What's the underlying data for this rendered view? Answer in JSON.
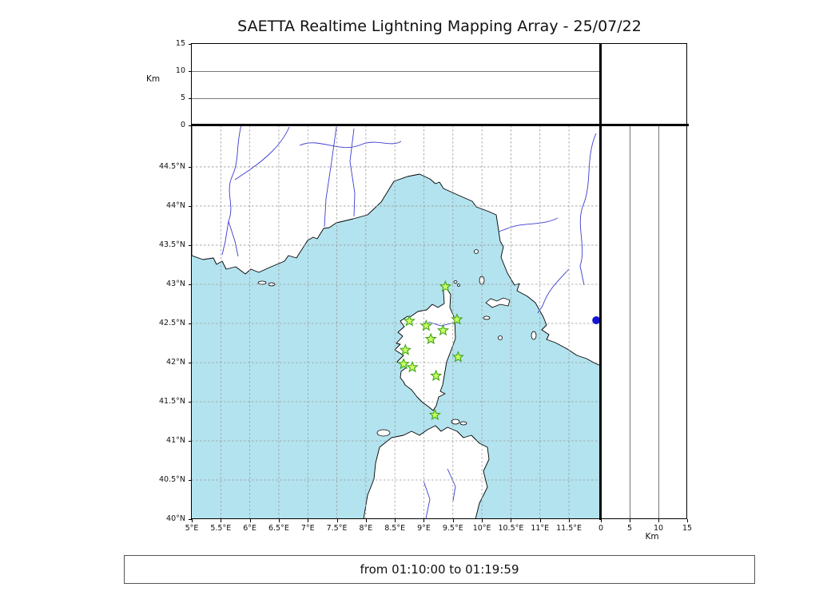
{
  "title": "SAETTA Realtime Lightning Mapping Array - 25/07/22",
  "footer": {
    "text": "from 01:10:00 to 01:19:59"
  },
  "colors": {
    "sea": "#b3e3ee",
    "river": "#3b3bd1",
    "station_fill": "#ccff66",
    "station_edge": "#3ea512",
    "point": "#1515cf"
  },
  "altitude_axis": {
    "unit": "Km",
    "tick_labels": [
      "0",
      "5",
      "10",
      "15"
    ],
    "tick_values": [
      0,
      5,
      10,
      15
    ],
    "max": 15
  },
  "map_axes": {
    "lat_tick_labels": [
      "44.5°N",
      "44°N",
      "43.5°N",
      "43°N",
      "42.5°N",
      "42°N",
      "41.5°N",
      "41°N",
      "40.5°N",
      "40°N"
    ],
    "lat_tick_values": [
      44.5,
      44,
      43.5,
      43,
      42.5,
      42,
      41.5,
      41,
      40.5,
      40
    ],
    "lon_tick_labels": [
      "5°E",
      "5.5°E",
      "6°E",
      "6.5°E",
      "7°E",
      "7.5°E",
      "8°E",
      "8.5°E",
      "9°E",
      "9.5°E",
      "10°E",
      "10.5°E",
      "11°E",
      "11.5°E"
    ],
    "lon_tick_values": [
      5,
      5.5,
      6,
      6.5,
      7,
      7.5,
      8,
      8.5,
      9,
      9.5,
      10,
      10.5,
      11,
      11.5
    ]
  },
  "chart_data": {
    "type": "scatter",
    "title": "SAETTA Realtime Lightning Mapping Array - 25/07/22",
    "time_window": {
      "from": "01:10:00",
      "to": "01:19:59"
    },
    "map_panel": {
      "region": "Corsica and NW Mediterranean",
      "lon_range": [
        5,
        12.05
      ],
      "lat_range": [
        40,
        45.03
      ],
      "grid": "dashed every 0.5 degree",
      "stations": [
        {
          "lon": 9.37,
          "lat": 42.97
        },
        {
          "lon": 8.75,
          "lat": 42.53
        },
        {
          "lon": 9.04,
          "lat": 42.47
        },
        {
          "lon": 9.57,
          "lat": 42.55
        },
        {
          "lon": 9.33,
          "lat": 42.41
        },
        {
          "lon": 9.12,
          "lat": 42.3
        },
        {
          "lon": 8.68,
          "lat": 42.16
        },
        {
          "lon": 9.59,
          "lat": 42.07
        },
        {
          "lon": 8.65,
          "lat": 41.98
        },
        {
          "lon": 8.8,
          "lat": 41.94
        },
        {
          "lon": 9.21,
          "lat": 41.83
        },
        {
          "lon": 9.19,
          "lat": 41.33
        }
      ],
      "detections": [
        {
          "lon": 11.97,
          "lat": 42.54
        }
      ]
    },
    "alt_lon_panel": {
      "ylabel": "Km",
      "ylim": [
        0,
        15
      ],
      "yticks": [
        0,
        5,
        10,
        15
      ],
      "points": []
    },
    "alt_lat_panel": {
      "xlabel": "Km",
      "xlim": [
        0,
        15
      ],
      "xticks": [
        0,
        5,
        10,
        15
      ],
      "points": []
    }
  }
}
